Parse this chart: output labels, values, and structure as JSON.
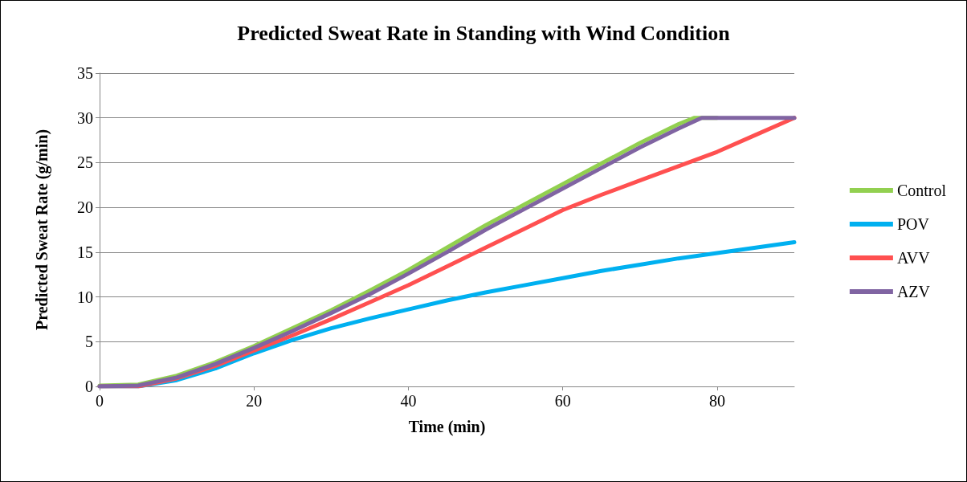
{
  "chart_data": {
    "type": "line",
    "title": "Predicted Sweat Rate in Standing with Wind Condition",
    "xlabel": "Time (min)",
    "ylabel": "Predicted Sweat Rate (g/min)",
    "xlim": [
      0,
      90
    ],
    "xticks": [
      0,
      20,
      40,
      60,
      80
    ],
    "ylim": [
      0,
      35
    ],
    "yticks": [
      0,
      5,
      10,
      15,
      20,
      25,
      30,
      35
    ],
    "grid": "y",
    "legend": "right",
    "marker": "none",
    "line_style": "solid",
    "series": [
      {
        "name": "Control",
        "color": "#92d050",
        "x": [
          0,
          5,
          10,
          15,
          20,
          25,
          30,
          35,
          40,
          45,
          50,
          55,
          60,
          65,
          70,
          75,
          77,
          80
        ],
        "values": [
          0.1,
          0.2,
          1.2,
          2.7,
          4.5,
          6.5,
          8.5,
          10.7,
          13.0,
          15.5,
          18.0,
          20.3,
          22.6,
          24.9,
          27.2,
          29.3,
          30,
          30
        ]
      },
      {
        "name": "POV",
        "color": "#00b0f0",
        "x": [
          0,
          5,
          10,
          15,
          20,
          25,
          30,
          35,
          40,
          45,
          50,
          55,
          60,
          65,
          70,
          75,
          80,
          85,
          90
        ],
        "values": [
          0,
          0,
          0.7,
          2.0,
          3.7,
          5.2,
          6.5,
          7.6,
          8.6,
          9.6,
          10.5,
          11.3,
          12.1,
          12.9,
          13.6,
          14.3,
          14.9,
          15.5,
          16.1
        ]
      },
      {
        "name": "AVV",
        "color": "#ff5050",
        "x": [
          0,
          5,
          10,
          15,
          20,
          25,
          30,
          35,
          40,
          45,
          50,
          55,
          60,
          65,
          70,
          75,
          80,
          85,
          90
        ],
        "values": [
          0,
          0,
          0.9,
          2.3,
          4.0,
          5.7,
          7.5,
          9.4,
          11.3,
          13.4,
          15.5,
          17.6,
          19.7,
          21.4,
          23.0,
          24.6,
          26.2,
          28.1,
          30
        ]
      },
      {
        "name": "AZV",
        "color": "#8064a2",
        "x": [
          0,
          5,
          10,
          15,
          20,
          25,
          30,
          35,
          40,
          45,
          50,
          55,
          60,
          65,
          70,
          75,
          78,
          80,
          85,
          90
        ],
        "values": [
          0,
          0.1,
          1.0,
          2.5,
          4.3,
          6.2,
          8.2,
          10.3,
          12.6,
          15.0,
          17.5,
          19.8,
          22.1,
          24.4,
          26.7,
          28.8,
          30,
          30,
          30,
          30
        ]
      }
    ]
  }
}
